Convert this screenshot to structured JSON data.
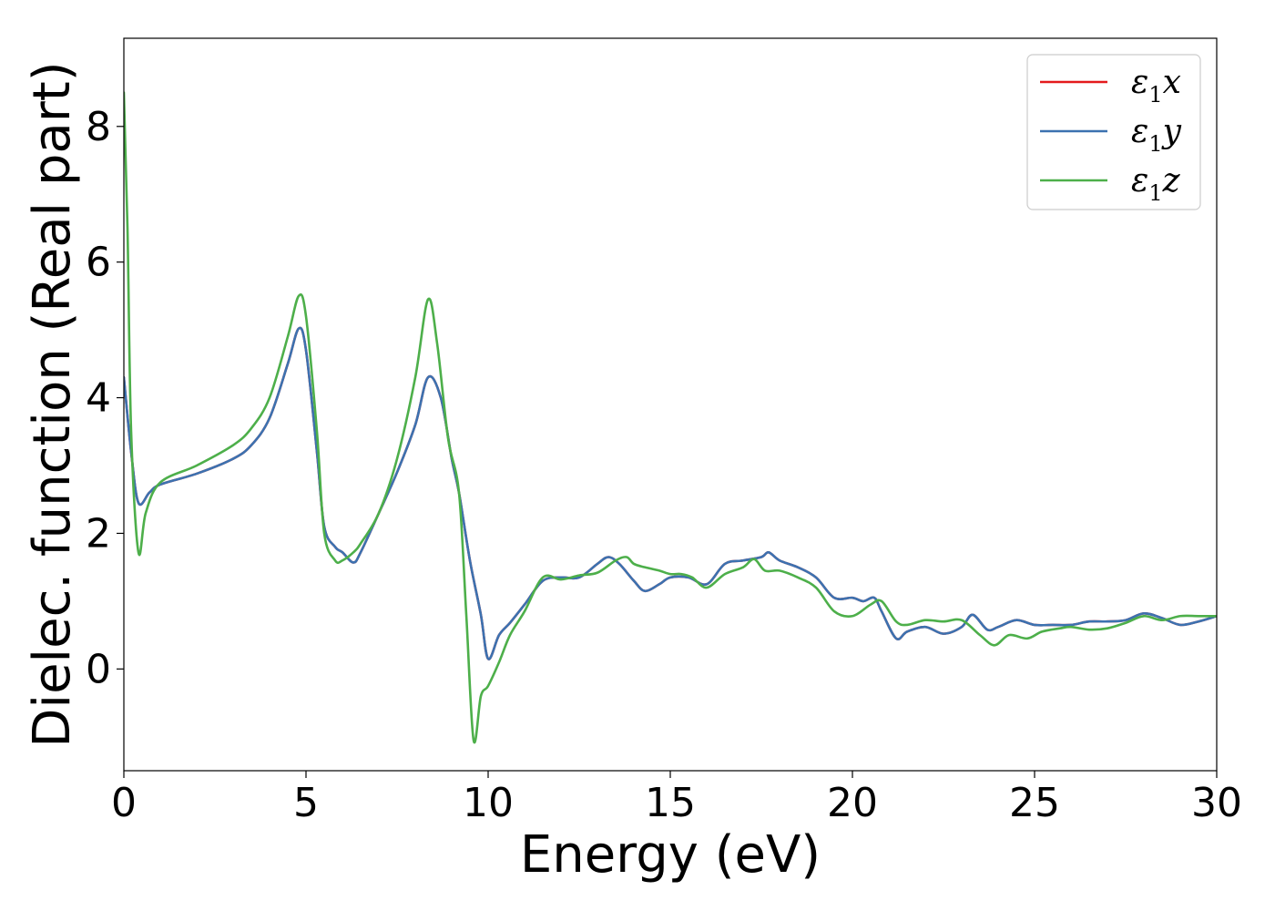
{
  "chart_data": {
    "type": "line",
    "xlabel": "Energy (eV)",
    "ylabel": "Dielec. function (Real part)",
    "xlim": [
      0,
      30
    ],
    "ylim": [
      -1.5,
      9.3
    ],
    "xticks": [
      0,
      5,
      10,
      15,
      20,
      25,
      30
    ],
    "yticks": [
      0,
      2,
      4,
      6,
      8
    ],
    "grid": false,
    "legend_position": "top-right",
    "series": [
      {
        "name": "ε1x",
        "legend_base": "ε",
        "legend_sub": "1",
        "legend_var": "x",
        "color": "#e41a1c",
        "points": [
          [
            0,
            4.3
          ],
          [
            0.2,
            3.2
          ],
          [
            0.4,
            2.45
          ],
          [
            0.7,
            2.6
          ],
          [
            1.0,
            2.72
          ],
          [
            2.0,
            2.88
          ],
          [
            3.0,
            3.1
          ],
          [
            3.5,
            3.3
          ],
          [
            4.0,
            3.7
          ],
          [
            4.5,
            4.5
          ],
          [
            4.8,
            5.02
          ],
          [
            5.0,
            4.7
          ],
          [
            5.3,
            3.2
          ],
          [
            5.5,
            2.1
          ],
          [
            5.8,
            1.8
          ],
          [
            6.0,
            1.72
          ],
          [
            6.3,
            1.57
          ],
          [
            6.5,
            1.72
          ],
          [
            7.0,
            2.3
          ],
          [
            7.5,
            2.9
          ],
          [
            8.0,
            3.6
          ],
          [
            8.35,
            4.3
          ],
          [
            8.7,
            4.0
          ],
          [
            9.0,
            3.1
          ],
          [
            9.2,
            2.6
          ],
          [
            9.5,
            1.6
          ],
          [
            9.8,
            0.8
          ],
          [
            10.0,
            0.15
          ],
          [
            10.3,
            0.5
          ],
          [
            10.6,
            0.68
          ],
          [
            11.0,
            0.95
          ],
          [
            11.5,
            1.3
          ],
          [
            12.0,
            1.35
          ],
          [
            12.5,
            1.35
          ],
          [
            13.0,
            1.55
          ],
          [
            13.3,
            1.65
          ],
          [
            13.6,
            1.55
          ],
          [
            14.0,
            1.3
          ],
          [
            14.3,
            1.15
          ],
          [
            14.7,
            1.25
          ],
          [
            15.0,
            1.35
          ],
          [
            15.5,
            1.35
          ],
          [
            16.0,
            1.25
          ],
          [
            16.5,
            1.55
          ],
          [
            17.0,
            1.6
          ],
          [
            17.5,
            1.65
          ],
          [
            17.7,
            1.72
          ],
          [
            18.0,
            1.6
          ],
          [
            18.5,
            1.5
          ],
          [
            19.0,
            1.35
          ],
          [
            19.5,
            1.05
          ],
          [
            20.0,
            1.05
          ],
          [
            20.3,
            1.0
          ],
          [
            20.6,
            1.05
          ],
          [
            20.8,
            0.85
          ],
          [
            21.2,
            0.45
          ],
          [
            21.5,
            0.55
          ],
          [
            22.0,
            0.62
          ],
          [
            22.5,
            0.52
          ],
          [
            23.0,
            0.62
          ],
          [
            23.3,
            0.8
          ],
          [
            23.7,
            0.58
          ],
          [
            24.0,
            0.62
          ],
          [
            24.5,
            0.72
          ],
          [
            25.0,
            0.65
          ],
          [
            25.5,
            0.65
          ],
          [
            26.0,
            0.65
          ],
          [
            26.5,
            0.7
          ],
          [
            27.0,
            0.7
          ],
          [
            27.5,
            0.72
          ],
          [
            28.0,
            0.82
          ],
          [
            28.5,
            0.75
          ],
          [
            29.0,
            0.65
          ],
          [
            29.5,
            0.7
          ],
          [
            30.0,
            0.78
          ]
        ]
      },
      {
        "name": "ε1y",
        "legend_base": "ε",
        "legend_sub": "1",
        "legend_var": "y",
        "color": "#3c72b0",
        "points": [
          [
            0,
            4.3
          ],
          [
            0.2,
            3.2
          ],
          [
            0.4,
            2.45
          ],
          [
            0.7,
            2.6
          ],
          [
            1.0,
            2.72
          ],
          [
            2.0,
            2.88
          ],
          [
            3.0,
            3.1
          ],
          [
            3.5,
            3.3
          ],
          [
            4.0,
            3.7
          ],
          [
            4.5,
            4.5
          ],
          [
            4.8,
            5.02
          ],
          [
            5.0,
            4.7
          ],
          [
            5.3,
            3.2
          ],
          [
            5.5,
            2.1
          ],
          [
            5.8,
            1.8
          ],
          [
            6.0,
            1.72
          ],
          [
            6.3,
            1.57
          ],
          [
            6.5,
            1.72
          ],
          [
            7.0,
            2.3
          ],
          [
            7.5,
            2.9
          ],
          [
            8.0,
            3.6
          ],
          [
            8.35,
            4.3
          ],
          [
            8.7,
            4.0
          ],
          [
            9.0,
            3.1
          ],
          [
            9.2,
            2.6
          ],
          [
            9.5,
            1.6
          ],
          [
            9.8,
            0.8
          ],
          [
            10.0,
            0.15
          ],
          [
            10.3,
            0.5
          ],
          [
            10.6,
            0.68
          ],
          [
            11.0,
            0.95
          ],
          [
            11.5,
            1.3
          ],
          [
            12.0,
            1.35
          ],
          [
            12.5,
            1.35
          ],
          [
            13.0,
            1.55
          ],
          [
            13.3,
            1.65
          ],
          [
            13.6,
            1.55
          ],
          [
            14.0,
            1.3
          ],
          [
            14.3,
            1.15
          ],
          [
            14.7,
            1.25
          ],
          [
            15.0,
            1.35
          ],
          [
            15.5,
            1.35
          ],
          [
            16.0,
            1.25
          ],
          [
            16.5,
            1.55
          ],
          [
            17.0,
            1.6
          ],
          [
            17.5,
            1.65
          ],
          [
            17.7,
            1.72
          ],
          [
            18.0,
            1.6
          ],
          [
            18.5,
            1.5
          ],
          [
            19.0,
            1.35
          ],
          [
            19.5,
            1.05
          ],
          [
            20.0,
            1.05
          ],
          [
            20.3,
            1.0
          ],
          [
            20.6,
            1.05
          ],
          [
            20.8,
            0.85
          ],
          [
            21.2,
            0.45
          ],
          [
            21.5,
            0.55
          ],
          [
            22.0,
            0.62
          ],
          [
            22.5,
            0.52
          ],
          [
            23.0,
            0.62
          ],
          [
            23.3,
            0.8
          ],
          [
            23.7,
            0.58
          ],
          [
            24.0,
            0.62
          ],
          [
            24.5,
            0.72
          ],
          [
            25.0,
            0.65
          ],
          [
            25.5,
            0.65
          ],
          [
            26.0,
            0.65
          ],
          [
            26.5,
            0.7
          ],
          [
            27.0,
            0.7
          ],
          [
            27.5,
            0.72
          ],
          [
            28.0,
            0.82
          ],
          [
            28.5,
            0.75
          ],
          [
            29.0,
            0.65
          ],
          [
            29.5,
            0.7
          ],
          [
            30.0,
            0.78
          ]
        ]
      },
      {
        "name": "ε1z",
        "legend_base": "ε",
        "legend_sub": "1",
        "legend_var": "z",
        "color": "#4daf4a",
        "points": [
          [
            0,
            8.5
          ],
          [
            0.1,
            6.5
          ],
          [
            0.2,
            3.5
          ],
          [
            0.4,
            1.72
          ],
          [
            0.6,
            2.3
          ],
          [
            1.0,
            2.75
          ],
          [
            2.0,
            3.0
          ],
          [
            3.0,
            3.3
          ],
          [
            3.5,
            3.55
          ],
          [
            4.0,
            4.0
          ],
          [
            4.5,
            4.9
          ],
          [
            4.8,
            5.5
          ],
          [
            5.0,
            5.2
          ],
          [
            5.3,
            3.5
          ],
          [
            5.5,
            2.0
          ],
          [
            5.8,
            1.6
          ],
          [
            6.0,
            1.6
          ],
          [
            6.3,
            1.72
          ],
          [
            6.5,
            1.85
          ],
          [
            7.0,
            2.3
          ],
          [
            7.5,
            3.1
          ],
          [
            8.0,
            4.3
          ],
          [
            8.35,
            5.45
          ],
          [
            8.6,
            4.8
          ],
          [
            8.9,
            3.4
          ],
          [
            9.2,
            2.6
          ],
          [
            9.4,
            0.8
          ],
          [
            9.6,
            -1.05
          ],
          [
            9.8,
            -0.4
          ],
          [
            10.0,
            -0.25
          ],
          [
            10.3,
            0.1
          ],
          [
            10.6,
            0.5
          ],
          [
            11.0,
            0.85
          ],
          [
            11.5,
            1.35
          ],
          [
            12.0,
            1.32
          ],
          [
            12.5,
            1.38
          ],
          [
            13.0,
            1.42
          ],
          [
            13.5,
            1.6
          ],
          [
            13.8,
            1.65
          ],
          [
            14.0,
            1.55
          ],
          [
            14.3,
            1.5
          ],
          [
            14.7,
            1.45
          ],
          [
            15.0,
            1.4
          ],
          [
            15.3,
            1.4
          ],
          [
            15.6,
            1.35
          ],
          [
            16.0,
            1.2
          ],
          [
            16.5,
            1.4
          ],
          [
            17.0,
            1.5
          ],
          [
            17.3,
            1.62
          ],
          [
            17.6,
            1.45
          ],
          [
            18.0,
            1.45
          ],
          [
            18.5,
            1.35
          ],
          [
            19.0,
            1.2
          ],
          [
            19.5,
            0.85
          ],
          [
            20.0,
            0.78
          ],
          [
            20.5,
            0.95
          ],
          [
            20.8,
            1.0
          ],
          [
            21.2,
            0.7
          ],
          [
            21.5,
            0.65
          ],
          [
            22.0,
            0.72
          ],
          [
            22.5,
            0.7
          ],
          [
            23.0,
            0.72
          ],
          [
            23.5,
            0.5
          ],
          [
            23.9,
            0.35
          ],
          [
            24.3,
            0.5
          ],
          [
            24.8,
            0.45
          ],
          [
            25.2,
            0.55
          ],
          [
            25.7,
            0.6
          ],
          [
            26.0,
            0.62
          ],
          [
            26.5,
            0.58
          ],
          [
            27.0,
            0.6
          ],
          [
            27.5,
            0.68
          ],
          [
            28.0,
            0.78
          ],
          [
            28.5,
            0.72
          ],
          [
            29.0,
            0.78
          ],
          [
            29.5,
            0.78
          ],
          [
            30.0,
            0.78
          ]
        ]
      }
    ]
  }
}
